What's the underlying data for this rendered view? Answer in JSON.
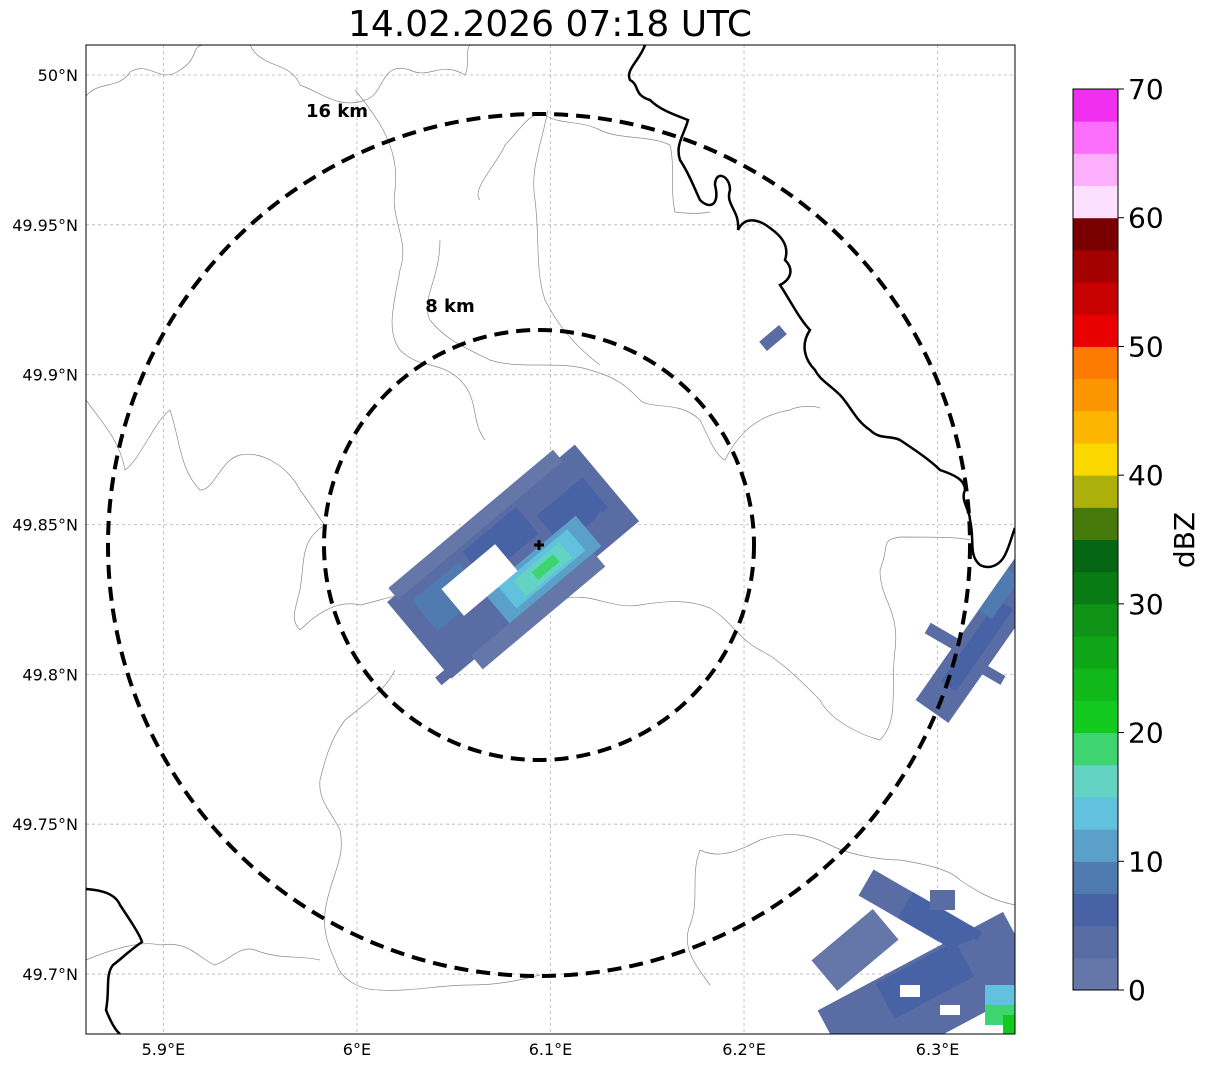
{
  "title": "14.02.2026 07:18 UTC",
  "map": {
    "lon_range": [
      5.86,
      6.34
    ],
    "lat_range": [
      49.68,
      50.01
    ],
    "x_ticks": [
      {
        "value": 5.9,
        "label": "5.9°E"
      },
      {
        "value": 6.0,
        "label": "6°E"
      },
      {
        "value": 6.1,
        "label": "6.1°E"
      },
      {
        "value": 6.2,
        "label": "6.2°E"
      },
      {
        "value": 6.3,
        "label": "6.3°E"
      }
    ],
    "y_ticks": [
      {
        "value": 49.7,
        "label": "49.7°N"
      },
      {
        "value": 49.75,
        "label": "49.75°N"
      },
      {
        "value": 49.8,
        "label": "49.8°N"
      },
      {
        "value": 49.85,
        "label": "49.85°N"
      },
      {
        "value": 49.9,
        "label": "49.9°N"
      },
      {
        "value": 49.95,
        "label": "49.95°N"
      },
      {
        "value": 50.0,
        "label": "50°N"
      }
    ],
    "radar_site": {
      "lon": 6.095,
      "lat": 49.843
    },
    "rings": [
      {
        "label": "8 km"
      },
      {
        "label": "16 km"
      }
    ]
  },
  "colorbar": {
    "label": "dBZ",
    "ticks": [
      "0",
      "10",
      "20",
      "30",
      "40",
      "50",
      "60",
      "70"
    ],
    "colors": [
      "#6577a8",
      "#5a6ca4",
      "#4862a6",
      "#4f7bb0",
      "#5aa0c8",
      "#62c1dc",
      "#63d4c4",
      "#3ed46f",
      "#12c91f",
      "#10b81a",
      "#0ea517",
      "#0e9317",
      "#0a7b14",
      "#046512",
      "#457a0a",
      "#adb00a",
      "#fbd700",
      "#fdb500",
      "#fb9600",
      "#fd7b00",
      "#e90000",
      "#c70000",
      "#a50000",
      "#7a0000",
      "#fde0ff",
      "#fcaffc",
      "#fc6efc",
      "#f02ff0"
    ]
  },
  "echoes": {
    "main_cell_color_weak": "#5a6ca4",
    "main_cell_color_core": "#63d4c4",
    "main_cell_color_peak": "#3ed46f"
  }
}
